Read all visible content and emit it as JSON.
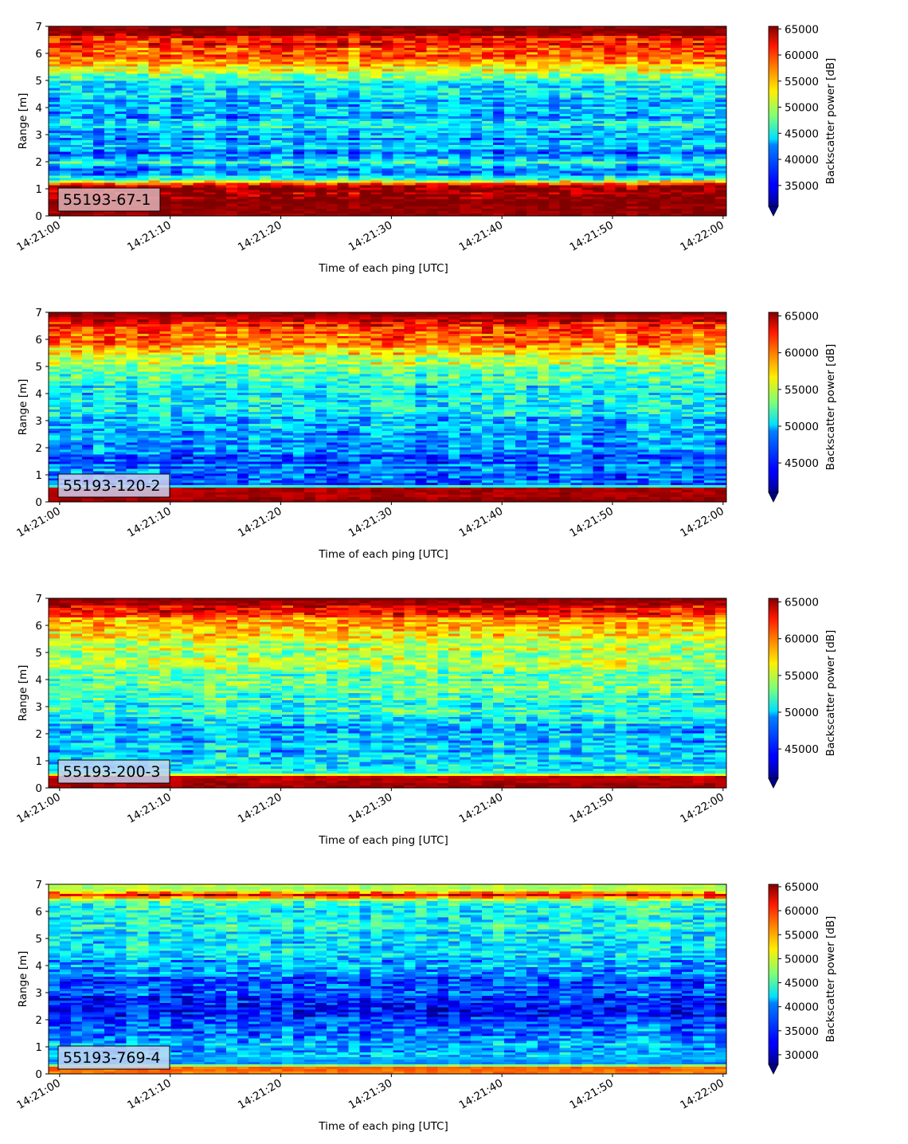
{
  "chart_data": [
    {
      "type": "heatmap",
      "label": "55193-67-1",
      "label_box_color": "#dfb4b8",
      "xlabel": "Time of each ping [UTC]",
      "ylabel": "Range [m]",
      "xticks": [
        "14:21:00",
        "14:21:10",
        "14:21:20",
        "14:21:30",
        "14:21:40",
        "14:21:50",
        "14:22:00"
      ],
      "xlim_seconds": [
        -1,
        60.3
      ],
      "ylim": [
        0,
        7
      ],
      "yticks": [
        0,
        1,
        2,
        3,
        4,
        5,
        6,
        7
      ],
      "colorbar_label": "Backscatter power [dB]",
      "vmin": 31000,
      "vmax": 65500,
      "colorbar_ticks": [
        35000,
        40000,
        45000,
        50000,
        55000,
        60000,
        65000
      ],
      "colormap": "jet",
      "colorbar_extend": "min",
      "profile": [
        [
          0.0,
          65000
        ],
        [
          0.25,
          65000
        ],
        [
          1.05,
          64000
        ],
        [
          1.2,
          58000
        ],
        [
          1.35,
          44000
        ],
        [
          1.6,
          39000
        ],
        [
          2.0,
          44500
        ],
        [
          2.3,
          38000
        ],
        [
          2.6,
          43000
        ],
        [
          2.8,
          40000
        ],
        [
          3.2,
          43000
        ],
        [
          3.8,
          41000
        ],
        [
          4.5,
          42000
        ],
        [
          5.0,
          44000
        ],
        [
          5.3,
          49000
        ],
        [
          5.6,
          55500
        ],
        [
          6.0,
          58000
        ],
        [
          6.5,
          61000
        ],
        [
          6.75,
          64000
        ],
        [
          7.0,
          65500
        ]
      ]
    },
    {
      "type": "heatmap",
      "label": "55193-120-2",
      "label_box_color": "#d0d0f0",
      "xlabel": "Time of each ping [UTC]",
      "ylabel": "Range [m]",
      "xticks": [
        "14:21:00",
        "14:21:10",
        "14:21:20",
        "14:21:30",
        "14:21:40",
        "14:21:50",
        "14:22:00"
      ],
      "xlim_seconds": [
        -1,
        60.3
      ],
      "ylim": [
        0,
        7
      ],
      "yticks": [
        0,
        1,
        2,
        3,
        4,
        5,
        6,
        7
      ],
      "colorbar_label": "Backscatter power [dB]",
      "vmin": 41000,
      "vmax": 65500,
      "colorbar_ticks": [
        45000,
        50000,
        55000,
        60000,
        65000
      ],
      "colormap": "jet",
      "colorbar_extend": "min",
      "profile": [
        [
          0.0,
          65000
        ],
        [
          0.5,
          64500
        ],
        [
          0.6,
          45000
        ],
        [
          1.0,
          47000
        ],
        [
          1.5,
          46500
        ],
        [
          2.0,
          47500
        ],
        [
          3.0,
          48500
        ],
        [
          4.0,
          50000
        ],
        [
          4.8,
          52500
        ],
        [
          5.3,
          55000
        ],
        [
          5.8,
          58500
        ],
        [
          6.3,
          61000
        ],
        [
          6.7,
          63500
        ],
        [
          7.0,
          65500
        ]
      ]
    },
    {
      "type": "heatmap",
      "label": "55193-200-3",
      "label_box_color": "#c4d4f4",
      "xlabel": "Time of each ping [UTC]",
      "ylabel": "Range [m]",
      "xticks": [
        "14:21:00",
        "14:21:10",
        "14:21:20",
        "14:21:30",
        "14:21:40",
        "14:21:50",
        "14:22:00"
      ],
      "xlim_seconds": [
        -1,
        60.3
      ],
      "ylim": [
        0,
        7
      ],
      "yticks": [
        0,
        1,
        2,
        3,
        4,
        5,
        6,
        7
      ],
      "colorbar_label": "Backscatter power [dB]",
      "vmin": 41000,
      "vmax": 65500,
      "colorbar_ticks": [
        45000,
        50000,
        55000,
        60000,
        65000
      ],
      "colormap": "jet",
      "colorbar_extend": "min",
      "profile": [
        [
          0.0,
          65000
        ],
        [
          0.4,
          64000
        ],
        [
          0.55,
          50000
        ],
        [
          1.0,
          49000
        ],
        [
          2.0,
          48500
        ],
        [
          3.0,
          51000
        ],
        [
          4.0,
          52500
        ],
        [
          5.0,
          54500
        ],
        [
          5.8,
          56500
        ],
        [
          6.3,
          60000
        ],
        [
          6.7,
          64000
        ],
        [
          7.0,
          65500
        ]
      ]
    },
    {
      "type": "heatmap",
      "label": "55193-769-4",
      "label_box_color": "#c4d4f4",
      "xlabel": "Time of each ping [UTC]",
      "ylabel": "Range [m]",
      "xticks": [
        "14:21:00",
        "14:21:10",
        "14:21:20",
        "14:21:30",
        "14:21:40",
        "14:21:50",
        "14:22:00"
      ],
      "xlim_seconds": [
        -1,
        60.3
      ],
      "ylim": [
        0,
        7
      ],
      "yticks": [
        0,
        1,
        2,
        3,
        4,
        5,
        6,
        7
      ],
      "colorbar_label": "Backscatter power [dB]",
      "vmin": 28000,
      "vmax": 65500,
      "colorbar_ticks": [
        30000,
        35000,
        40000,
        45000,
        50000,
        55000,
        60000,
        65000
      ],
      "colormap": "jet",
      "colorbar_extend": "min",
      "profile": [
        [
          0.0,
          56000
        ],
        [
          0.25,
          58000
        ],
        [
          0.35,
          38000
        ],
        [
          1.0,
          40000
        ],
        [
          1.5,
          37500
        ],
        [
          2.2,
          33000
        ],
        [
          3.0,
          35000
        ],
        [
          4.0,
          39000
        ],
        [
          5.0,
          41500
        ],
        [
          6.0,
          43500
        ],
        [
          6.4,
          46000
        ],
        [
          6.6,
          62000
        ],
        [
          6.8,
          48000
        ],
        [
          7.0,
          49000
        ]
      ]
    }
  ]
}
